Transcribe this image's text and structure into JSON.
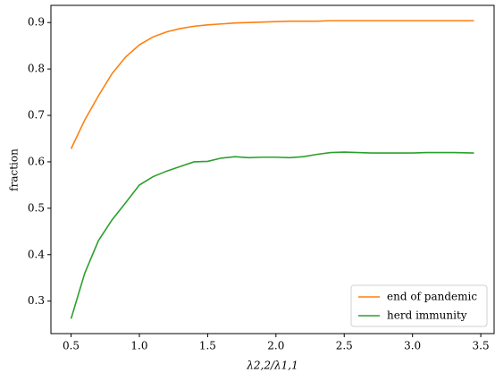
{
  "chart_data": {
    "type": "line",
    "xlabel": "λ2,2/λ1,1",
    "ylabel": "fraction",
    "x": [
      0.5,
      0.6,
      0.7,
      0.8,
      0.9,
      1.0,
      1.1,
      1.2,
      1.3,
      1.4,
      1.5,
      1.6,
      1.7,
      1.8,
      1.9,
      2.0,
      2.1,
      2.2,
      2.3,
      2.4,
      2.5,
      2.6,
      2.7,
      2.8,
      2.9,
      3.0,
      3.1,
      3.2,
      3.3,
      3.45
    ],
    "series": [
      {
        "name": "end of pandemic",
        "color": "#ff7f0e",
        "values": [
          0.628,
          0.69,
          0.742,
          0.79,
          0.826,
          0.852,
          0.869,
          0.88,
          0.887,
          0.892,
          0.895,
          0.897,
          0.899,
          0.9,
          0.901,
          0.902,
          0.903,
          0.903,
          0.903,
          0.904,
          0.904,
          0.904,
          0.904,
          0.904,
          0.904,
          0.904,
          0.904,
          0.904,
          0.904,
          0.904
        ]
      },
      {
        "name": "herd immunity",
        "color": "#2ca02c",
        "values": [
          0.262,
          0.36,
          0.43,
          0.475,
          0.512,
          0.55,
          0.568,
          0.58,
          0.59,
          0.6,
          0.601,
          0.608,
          0.611,
          0.609,
          0.61,
          0.61,
          0.609,
          0.611,
          0.616,
          0.62,
          0.621,
          0.62,
          0.619,
          0.619,
          0.619,
          0.619,
          0.62,
          0.62,
          0.62,
          0.619
        ]
      }
    ],
    "xlim": [
      0.3525,
      3.5975
    ],
    "ylim": [
      0.23,
      0.937
    ],
    "xticks": [
      {
        "value": 0.5,
        "label": "0.5"
      },
      {
        "value": 1.0,
        "label": "1.0"
      },
      {
        "value": 1.5,
        "label": "1.5"
      },
      {
        "value": 2.0,
        "label": "2.0"
      },
      {
        "value": 2.5,
        "label": "2.5"
      },
      {
        "value": 3.0,
        "label": "3.0"
      },
      {
        "value": 3.5,
        "label": "3.5"
      }
    ],
    "yticks": [
      0.3,
      0.4,
      0.5,
      0.6,
      0.7,
      0.8,
      0.9
    ],
    "grid": false,
    "legend": "lower right"
  }
}
